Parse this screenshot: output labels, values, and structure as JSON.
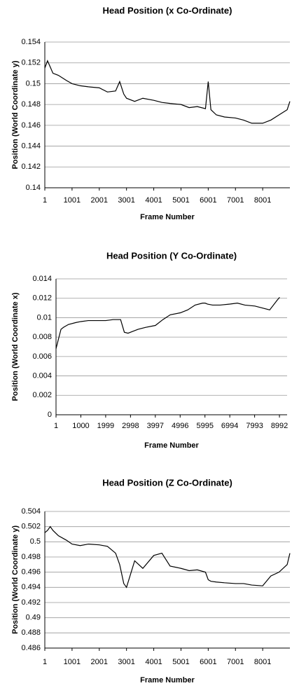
{
  "chart_data": [
    {
      "type": "line",
      "title": "Head Position (x Co-Ordinate)",
      "x_label": "Frame Number",
      "y_label": "Position (World Coordinate y)",
      "x": [
        1,
        100,
        200,
        300,
        500,
        800,
        1001,
        1300,
        1600,
        2001,
        2300,
        2600,
        2750,
        2900,
        3001,
        3300,
        3600,
        4001,
        4300,
        4600,
        5001,
        5300,
        5600,
        5900,
        6001,
        6100,
        6300,
        6600,
        7001,
        7300,
        7600,
        8001,
        8300,
        8600,
        8900,
        9000
      ],
      "values": [
        0.1515,
        0.1522,
        0.1516,
        0.151,
        0.1508,
        0.1503,
        0.15,
        0.1498,
        0.1497,
        0.1496,
        0.1492,
        0.1493,
        0.1502,
        0.149,
        0.1486,
        0.1483,
        0.1486,
        0.1484,
        0.1482,
        0.1481,
        0.148,
        0.1477,
        0.1478,
        0.1476,
        0.1502,
        0.1475,
        0.147,
        0.1468,
        0.1467,
        0.1465,
        0.1462,
        0.1462,
        0.1465,
        0.147,
        0.1475,
        0.1483
      ],
      "color": "#000000",
      "xlim": [
        1,
        9000
      ],
      "xticks": [
        1,
        1001,
        2001,
        3001,
        4001,
        5001,
        6001,
        7001,
        8001
      ],
      "ylim": [
        0.14,
        0.154
      ],
      "yticks": [
        0.14,
        0.142,
        0.144,
        0.146,
        0.148,
        0.15,
        0.152,
        0.154
      ],
      "grid": true
    },
    {
      "type": "line",
      "title": "Head Position (Y Co-Ordinate)",
      "x_label": "Frame Number",
      "y_label": "Position (World Coordinate x)",
      "x": [
        1,
        100,
        200,
        300,
        500,
        800,
        1001,
        1300,
        1600,
        2001,
        2300,
        2600,
        2750,
        2900,
        3001,
        3300,
        3600,
        4001,
        4300,
        4600,
        5001,
        5300,
        5600,
        5900,
        6001,
        6100,
        6300,
        6600,
        7001,
        7300,
        7600,
        8001,
        8300,
        8600,
        8900,
        9000
      ],
      "values": [
        0.0068,
        0.0078,
        0.0088,
        0.009,
        0.0093,
        0.0095,
        0.0096,
        0.0097,
        0.0097,
        0.0097,
        0.0098,
        0.0098,
        0.0085,
        0.0084,
        0.0085,
        0.0088,
        0.009,
        0.0092,
        0.0098,
        0.0103,
        0.0105,
        0.0108,
        0.0113,
        0.0115,
        0.0115,
        0.0114,
        0.0113,
        0.0113,
        0.0114,
        0.0115,
        0.0113,
        0.0112,
        0.011,
        0.0108,
        0.0118,
        0.0121
      ],
      "color": "#000000",
      "xlim": [
        1,
        9300
      ],
      "xticks": [
        1,
        1000,
        1999,
        2998,
        3997,
        4996,
        5995,
        6994,
        7993,
        8992
      ],
      "ylim": [
        0,
        0.014
      ],
      "yticks": [
        0,
        0.002,
        0.004,
        0.006,
        0.008,
        0.01,
        0.012,
        0.014
      ],
      "grid": true
    },
    {
      "type": "line",
      "title": "Head Position (Z Co-Ordinate)",
      "x_label": "Frame Number",
      "y_label": "Position (World Coordinate y)",
      "x": [
        1,
        100,
        200,
        300,
        500,
        800,
        1001,
        1300,
        1600,
        2001,
        2300,
        2600,
        2750,
        2900,
        3001,
        3300,
        3600,
        4001,
        4300,
        4600,
        5001,
        5300,
        5600,
        5900,
        6001,
        6100,
        6300,
        6600,
        7001,
        7300,
        7600,
        8001,
        8300,
        8600,
        8900,
        9000
      ],
      "values": [
        0.5012,
        0.5015,
        0.502,
        0.5015,
        0.5008,
        0.5002,
        0.4997,
        0.4995,
        0.4997,
        0.4996,
        0.4994,
        0.4985,
        0.497,
        0.4945,
        0.494,
        0.4975,
        0.4965,
        0.4982,
        0.4985,
        0.4968,
        0.4965,
        0.4962,
        0.4963,
        0.496,
        0.495,
        0.4948,
        0.4947,
        0.4946,
        0.4945,
        0.4945,
        0.4943,
        0.4942,
        0.4955,
        0.496,
        0.497,
        0.4985
      ],
      "color": "#000000",
      "xlim": [
        1,
        9000
      ],
      "xticks": [
        1,
        1001,
        2001,
        3001,
        4001,
        5001,
        6001,
        7001,
        8001
      ],
      "ylim": [
        0.486,
        0.504
      ],
      "yticks": [
        0.486,
        0.488,
        0.49,
        0.492,
        0.494,
        0.496,
        0.498,
        0.5,
        0.502,
        0.504
      ],
      "grid": true
    }
  ]
}
